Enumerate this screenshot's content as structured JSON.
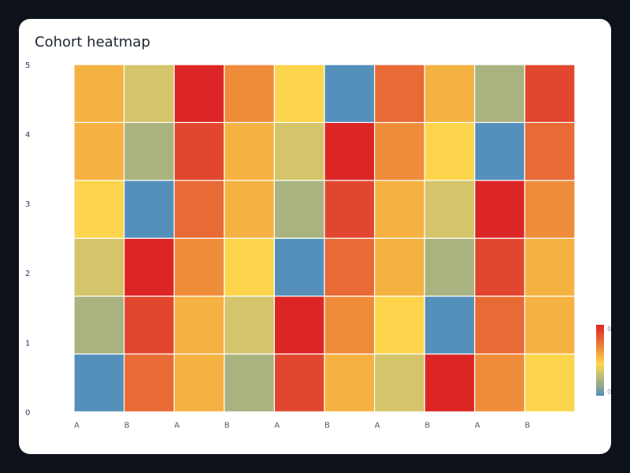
{
  "chart": {
    "title": "Cohort heatmap"
  },
  "chart_data": {
    "type": "heatmap",
    "title": "Cohort heatmap",
    "x_tick_labels": [
      "A",
      "B",
      "A",
      "B",
      "A",
      "B",
      "A",
      "B",
      "A",
      "B"
    ],
    "y_tick_labels": [
      "0",
      "1",
      "2",
      "3",
      "4",
      "5"
    ],
    "ylim": [
      0,
      5
    ],
    "rows": 6,
    "cols": 10,
    "values_bottom_to_top": [
      [
        0,
        48,
        30,
        12,
        54,
        36,
        18,
        60,
        42,
        24
      ],
      [
        12,
        54,
        36,
        18,
        60,
        42,
        24,
        0,
        48,
        30
      ],
      [
        18,
        60,
        42,
        24,
        0,
        48,
        30,
        12,
        54,
        36
      ],
      [
        24,
        0,
        48,
        30,
        12,
        54,
        36,
        18,
        60,
        42
      ],
      [
        30,
        12,
        54,
        36,
        18,
        60,
        42,
        24,
        0,
        48
      ],
      [
        36,
        18,
        60,
        42,
        24,
        0,
        48,
        30,
        12,
        54
      ]
    ],
    "colorbar": {
      "min": 0,
      "max": 60,
      "min_label": "0",
      "max_label": "60"
    },
    "colorscale": [
      "#5590bb",
      "#86a29a",
      "#a9b37f",
      "#d4c46a",
      "#fdd54c",
      "#f5b242",
      "#ef8c3a",
      "#e86a34",
      "#e1472e",
      "#dc2626"
    ],
    "grid": false
  }
}
